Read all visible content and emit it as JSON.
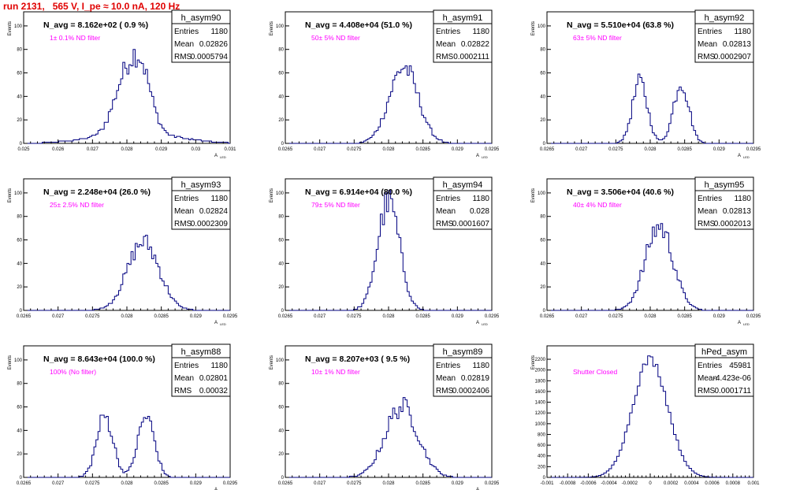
{
  "title": "run 2131,   565 V, I_pe ≈ 10.0 nA, 120 Hz",
  "colors": {
    "hist": "#000080",
    "title": "#e00000",
    "annotation": "#ff00ff"
  },
  "chart_data": [
    {
      "type": "bar",
      "name": "h_asym90",
      "info": "N_avg = 8.162e+02 ( 0.9 %)",
      "filter": "1± 0.1% ND filter",
      "stats": {
        "entries": "1180",
        "mean": "0.02826",
        "rms": "0.0005794"
      },
      "ylabel": "Events",
      "xlabel": "A",
      "xlim": [
        0.025,
        0.031
      ],
      "ylim": [
        0,
        112
      ],
      "xticks": [
        "0.025",
        "0.026",
        "0.027",
        "0.028",
        "0.029",
        "0.03",
        "0.031"
      ],
      "yticks": [
        "0",
        "20",
        "40",
        "60",
        "80",
        "100"
      ],
      "peaks": [
        [
          0.0279,
          38,
          0.00032
        ],
        [
          0.0284,
          52,
          0.0003
        ],
        [
          0.02825,
          10,
          0.0011
        ]
      ]
    },
    {
      "type": "bar",
      "name": "h_asym91",
      "info": "N_avg = 4.408e+04 (51.0 %)",
      "filter": "50± 5% ND filter",
      "stats": {
        "entries": "1180",
        "mean": "0.02822",
        "rms": "0.0002111"
      },
      "ylabel": "Events",
      "xlabel": "A",
      "xlim": [
        0.0265,
        0.0295
      ],
      "ylim": [
        0,
        112
      ],
      "xticks": [
        "0.0265",
        "0.027",
        "0.0275",
        "0.028",
        "0.0285",
        "0.029",
        "0.0295"
      ],
      "yticks": [
        "0",
        "20",
        "40",
        "60",
        "80",
        "100"
      ],
      "peaks": [
        [
          0.02822,
          65,
          0.00021
        ]
      ]
    },
    {
      "type": "bar",
      "name": "h_asym92",
      "info": "N_avg = 5.510e+04 (63.8 %)",
      "filter": "63± 5% ND filter",
      "stats": {
        "entries": "1180",
        "mean": "0.02813",
        "rms": "0.0002907"
      },
      "ylabel": "Events",
      "xlabel": "A",
      "xlim": [
        0.0265,
        0.0295
      ],
      "ylim": [
        0,
        112
      ],
      "xticks": [
        "0.0265",
        "0.027",
        "0.0275",
        "0.028",
        "0.0285",
        "0.029",
        "0.0295"
      ],
      "yticks": [
        "0",
        "20",
        "40",
        "60",
        "80",
        "100"
      ],
      "peaks": [
        [
          0.02785,
          52,
          0.00011
        ],
        [
          0.02845,
          52,
          0.00011
        ]
      ]
    },
    {
      "type": "bar",
      "name": "h_asym93",
      "info": "N_avg = 2.248e+04 (26.0 %)",
      "filter": "25± 2.5% ND filter",
      "stats": {
        "entries": "1180",
        "mean": "0.02824",
        "rms": "0.0002309"
      },
      "ylabel": "Events",
      "xlabel": "A",
      "xlim": [
        0.0265,
        0.0295
      ],
      "ylim": [
        0,
        112
      ],
      "xticks": [
        "0.0265",
        "0.027",
        "0.0275",
        "0.028",
        "0.0285",
        "0.029",
        "0.0295"
      ],
      "yticks": [
        "0",
        "20",
        "40",
        "60",
        "80",
        "100"
      ],
      "peaks": [
        [
          0.02824,
          58,
          0.00023
        ]
      ]
    },
    {
      "type": "bar",
      "name": "h_asym94",
      "info": "N_avg = 6.914e+04 (80.0 %)",
      "filter": "79± 5% ND filter",
      "stats": {
        "entries": "1180",
        "mean": "0.028",
        "rms": "0.0001607"
      },
      "ylabel": "Events",
      "xlabel": "A",
      "xlim": [
        0.0265,
        0.0295
      ],
      "ylim": [
        0,
        112
      ],
      "xticks": [
        "0.0265",
        "0.027",
        "0.0275",
        "0.028",
        "0.0285",
        "0.029",
        "0.0295"
      ],
      "yticks": [
        "0",
        "20",
        "40",
        "60",
        "80",
        "100"
      ],
      "peaks": [
        [
          0.028,
          92,
          0.00016
        ]
      ]
    },
    {
      "type": "bar",
      "name": "h_asym95",
      "info": "N_avg = 3.506e+04 (40.6 %)",
      "filter": "40± 4% ND filter",
      "stats": {
        "entries": "1180",
        "mean": "0.02813",
        "rms": "0.0002013"
      },
      "ylabel": "Events",
      "xlabel": "A",
      "xlim": [
        0.0265,
        0.0295
      ],
      "ylim": [
        0,
        112
      ],
      "xticks": [
        "0.0265",
        "0.027",
        "0.0275",
        "0.028",
        "0.0285",
        "0.029",
        "0.0295"
      ],
      "yticks": [
        "0",
        "20",
        "40",
        "60",
        "80",
        "100"
      ],
      "peaks": [
        [
          0.02813,
          72,
          0.0002
        ]
      ]
    },
    {
      "type": "bar",
      "name": "h_asym88",
      "info": "N_avg = 8.643e+04 (100.0 %)",
      "filter": "100% (No filter)",
      "stats": {
        "entries": "1180",
        "mean": "0.02801",
        "rms": "0.00032"
      },
      "ylabel": "Events",
      "xlabel": "A",
      "xlim": [
        0.0265,
        0.0295
      ],
      "ylim": [
        0,
        112
      ],
      "xticks": [
        "0.0265",
        "0.027",
        "0.0275",
        "0.028",
        "0.0285",
        "0.029",
        "0.0295"
      ],
      "yticks": [
        "0",
        "20",
        "40",
        "60",
        "80",
        "100"
      ],
      "peaks": [
        [
          0.02768,
          52,
          0.00012
        ],
        [
          0.02828,
          52,
          0.00012
        ]
      ]
    },
    {
      "type": "bar",
      "name": "h_asym89",
      "info": "N_avg = 8.207e+03 ( 9.5 %)",
      "filter": "10± 1% ND filter",
      "stats": {
        "entries": "1180",
        "mean": "0.02819",
        "rms": "0.0002406"
      },
      "ylabel": "Events",
      "xlabel": "A",
      "xlim": [
        0.0265,
        0.0295
      ],
      "ylim": [
        0,
        112
      ],
      "xticks": [
        "0.0265",
        "0.027",
        "0.0275",
        "0.028",
        "0.0285",
        "0.029",
        "0.0295"
      ],
      "yticks": [
        "0",
        "20",
        "40",
        "60",
        "80",
        "100"
      ],
      "peaks": [
        [
          0.02819,
          60,
          0.00024
        ]
      ]
    },
    {
      "type": "bar",
      "name": "hPed_asym",
      "info": "",
      "filter": "Shutter Closed",
      "stats": {
        "entries": "45981",
        "mean": "-4.423e-06",
        "rms": "0.0001711"
      },
      "ylabel": "Events",
      "xlabel": "",
      "xlim": [
        -0.001,
        0.001
      ],
      "ylim": [
        0,
        2450
      ],
      "xticks": [
        "-0.001",
        "-0.0008",
        "-0.0006",
        "-0.0004",
        "-0.0002",
        "0",
        "0.0002",
        "0.0004",
        "0.0006",
        "0.0008",
        "0.001"
      ],
      "yticks": [
        "0",
        "200",
        "400",
        "600",
        "800",
        "1000",
        "1200",
        "1400",
        "1600",
        "1800",
        "2000",
        "2200"
      ],
      "peaks": [
        [
          0.0,
          2200,
          0.00017
        ]
      ]
    }
  ]
}
